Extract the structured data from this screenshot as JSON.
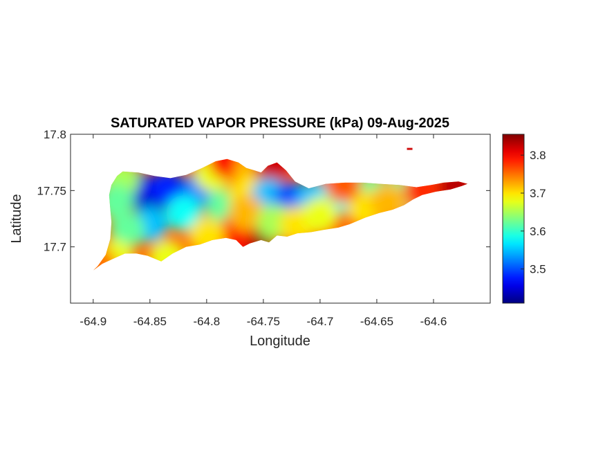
{
  "chart_data": {
    "type": "heatmap",
    "title": "SATURATED VAPOR PRESSURE (kPa) 09-Aug-2025",
    "xlabel": "Longitude",
    "ylabel": "Latitude",
    "xlim": [
      -64.92,
      -64.55
    ],
    "ylim": [
      17.65,
      17.8
    ],
    "xticks": [
      -64.9,
      -64.85,
      -64.8,
      -64.75,
      -64.7,
      -64.65,
      -64.6
    ],
    "yticks": [
      17.7,
      17.75,
      17.8
    ],
    "colorbar": {
      "colormap": "jet",
      "range": [
        3.41,
        3.855
      ],
      "ticks": [
        3.5,
        3.6,
        3.7,
        3.8
      ]
    },
    "outline": [
      [
        -64.9,
        17.679
      ],
      [
        -64.892,
        17.685
      ],
      [
        -64.881,
        17.69
      ],
      [
        -64.872,
        17.694
      ],
      [
        -64.862,
        17.694
      ],
      [
        -64.852,
        17.692
      ],
      [
        -64.84,
        17.687
      ],
      [
        -64.83,
        17.694
      ],
      [
        -64.818,
        17.7
      ],
      [
        -64.806,
        17.702
      ],
      [
        -64.795,
        17.706
      ],
      [
        -64.783,
        17.708
      ],
      [
        -64.774,
        17.706
      ],
      [
        -64.768,
        17.7
      ],
      [
        -64.762,
        17.703
      ],
      [
        -64.752,
        17.706
      ],
      [
        -64.745,
        17.704
      ],
      [
        -64.738,
        17.71
      ],
      [
        -64.729,
        17.709
      ],
      [
        -64.72,
        17.712
      ],
      [
        -64.708,
        17.713
      ],
      [
        -64.697,
        17.715
      ],
      [
        -64.684,
        17.717
      ],
      [
        -64.674,
        17.72
      ],
      [
        -64.66,
        17.726
      ],
      [
        -64.648,
        17.73
      ],
      [
        -64.636,
        17.733
      ],
      [
        -64.626,
        17.737
      ],
      [
        -64.618,
        17.742
      ],
      [
        -64.61,
        17.746
      ],
      [
        -64.598,
        17.749
      ],
      [
        -64.585,
        17.751
      ],
      [
        -64.575,
        17.754
      ],
      [
        -64.57,
        17.756
      ],
      [
        -64.578,
        17.758
      ],
      [
        -64.591,
        17.757
      ],
      [
        -64.602,
        17.755
      ],
      [
        -64.615,
        17.753
      ],
      [
        -64.63,
        17.755
      ],
      [
        -64.647,
        17.756
      ],
      [
        -64.662,
        17.757
      ],
      [
        -64.678,
        17.757
      ],
      [
        -64.695,
        17.756
      ],
      [
        -64.71,
        17.752
      ],
      [
        -64.722,
        17.758
      ],
      [
        -64.73,
        17.768
      ],
      [
        -64.738,
        17.775
      ],
      [
        -64.746,
        17.772
      ],
      [
        -64.752,
        17.766
      ],
      [
        -64.758,
        17.768
      ],
      [
        -64.765,
        17.77
      ],
      [
        -64.772,
        17.775
      ],
      [
        -64.782,
        17.778
      ],
      [
        -64.792,
        17.776
      ],
      [
        -64.804,
        17.77
      ],
      [
        -64.818,
        17.764
      ],
      [
        -64.832,
        17.761
      ],
      [
        -64.846,
        17.763
      ],
      [
        -64.86,
        17.766
      ],
      [
        -64.874,
        17.767
      ],
      [
        -64.879,
        17.763
      ],
      [
        -64.884,
        17.755
      ],
      [
        -64.886,
        17.746
      ],
      [
        -64.885,
        17.734
      ],
      [
        -64.884,
        17.722
      ],
      [
        -64.885,
        17.707
      ],
      [
        -64.889,
        17.693
      ],
      [
        -64.896,
        17.683
      ]
    ],
    "islet": {
      "lon": -64.621,
      "lat": 17.787
    },
    "field_samples": [
      {
        "lon": -64.85,
        "lat": 17.743,
        "value": 3.42
      },
      {
        "lon": -64.862,
        "lat": 17.752,
        "value": 3.45
      },
      {
        "lon": -64.835,
        "lat": 17.752,
        "value": 3.48
      },
      {
        "lon": -64.805,
        "lat": 17.752,
        "value": 3.52
      },
      {
        "lon": -64.85,
        "lat": 17.72,
        "value": 3.55
      },
      {
        "lon": -64.87,
        "lat": 17.715,
        "value": 3.62
      },
      {
        "lon": -64.82,
        "lat": 17.73,
        "value": 3.58
      },
      {
        "lon": -64.88,
        "lat": 17.69,
        "value": 3.68
      },
      {
        "lon": -64.785,
        "lat": 17.735,
        "value": 3.62
      },
      {
        "lon": -64.795,
        "lat": 17.765,
        "value": 3.68
      },
      {
        "lon": -64.782,
        "lat": 17.776,
        "value": 3.8
      },
      {
        "lon": -64.76,
        "lat": 17.768,
        "value": 3.72
      },
      {
        "lon": -64.742,
        "lat": 17.772,
        "value": 3.82
      },
      {
        "lon": -64.765,
        "lat": 17.747,
        "value": 3.7
      },
      {
        "lon": -64.745,
        "lat": 17.745,
        "value": 3.55
      },
      {
        "lon": -64.725,
        "lat": 17.742,
        "value": 3.5
      },
      {
        "lon": -64.705,
        "lat": 17.743,
        "value": 3.55
      },
      {
        "lon": -64.685,
        "lat": 17.745,
        "value": 3.58
      },
      {
        "lon": -64.655,
        "lat": 17.748,
        "value": 3.62
      },
      {
        "lon": -64.63,
        "lat": 17.747,
        "value": 3.62
      },
      {
        "lon": -64.61,
        "lat": 17.75,
        "value": 3.78
      },
      {
        "lon": -64.58,
        "lat": 17.754,
        "value": 3.83
      },
      {
        "lon": -64.755,
        "lat": 17.71,
        "value": 3.85
      },
      {
        "lon": -64.775,
        "lat": 17.712,
        "value": 3.8
      },
      {
        "lon": -64.765,
        "lat": 17.73,
        "value": 3.72
      },
      {
        "lon": -64.74,
        "lat": 17.722,
        "value": 3.65
      },
      {
        "lon": -64.72,
        "lat": 17.72,
        "value": 3.7
      },
      {
        "lon": -64.8,
        "lat": 17.71,
        "value": 3.7
      },
      {
        "lon": -64.835,
        "lat": 17.69,
        "value": 3.68
      },
      {
        "lon": -64.7,
        "lat": 17.728,
        "value": 3.68
      },
      {
        "lon": -64.66,
        "lat": 17.734,
        "value": 3.7
      },
      {
        "lon": -64.64,
        "lat": 17.74,
        "value": 3.72
      },
      {
        "lon": -64.68,
        "lat": 17.755,
        "value": 3.76
      },
      {
        "lon": -64.875,
        "lat": 17.76,
        "value": 3.65
      },
      {
        "lon": -64.88,
        "lat": 17.74,
        "value": 3.62
      },
      {
        "lon": -64.895,
        "lat": 17.683,
        "value": 3.75
      }
    ]
  }
}
